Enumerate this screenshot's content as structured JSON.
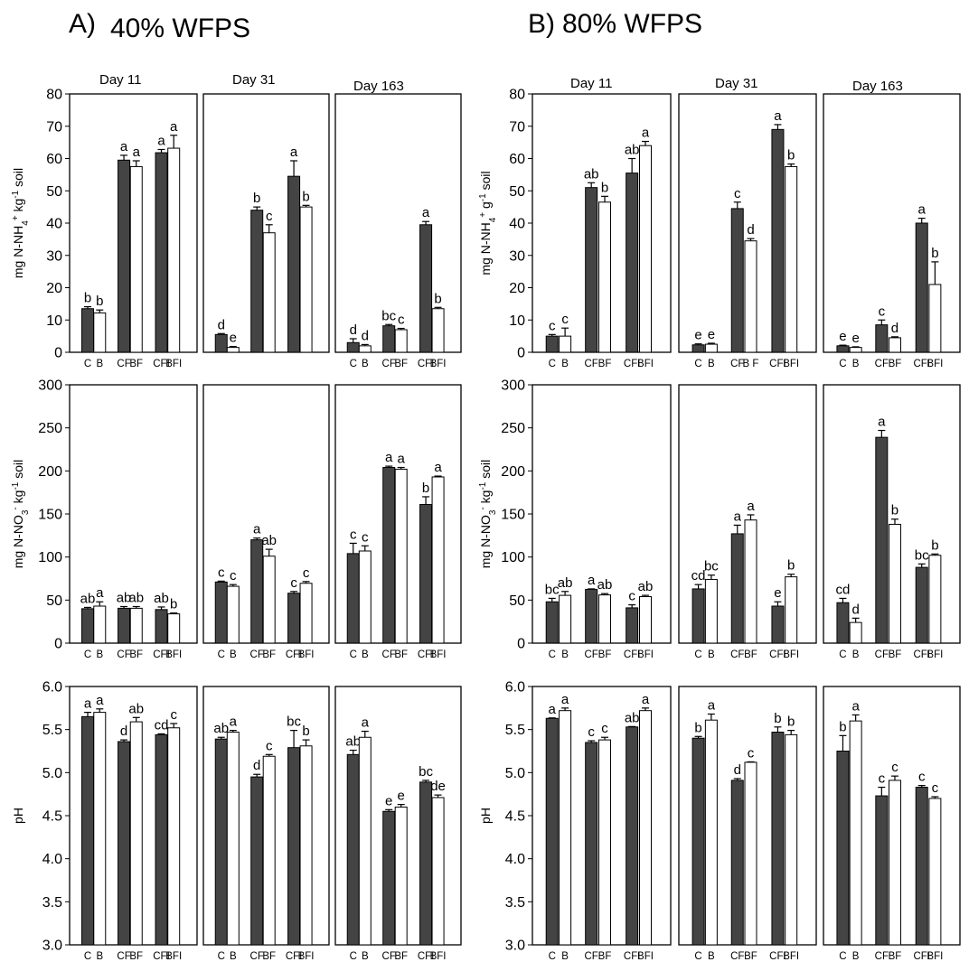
{
  "figure": {
    "panels": [
      {
        "letter": "A)",
        "title": "40% WFPS"
      },
      {
        "letter": "B)",
        "title": "80% WFPS"
      }
    ],
    "days": [
      "Day  11",
      "Day 31",
      "Day 163"
    ],
    "rows": [
      {
        "ylabel_parts": [
          [
            "mg N-NH",
            ""
          ],
          [
            "4",
            "sub"
          ],
          [
            "+",
            "sup"
          ],
          [
            " kg",
            ""
          ],
          [
            "-1",
            "sup"
          ],
          [
            " soil",
            ""
          ]
        ]
      },
      {
        "ylabel_parts": [
          [
            "mg N-NO",
            ""
          ],
          [
            "3",
            "sub"
          ],
          [
            "-",
            "sup"
          ],
          [
            " kg",
            ""
          ],
          [
            "-1",
            "sup"
          ],
          [
            " soil",
            ""
          ]
        ]
      },
      {
        "ylabel_parts": [
          [
            "pH",
            ""
          ]
        ]
      }
    ],
    "ylabel_nh4_B_parts": [
      [
        "mg N-NH",
        ""
      ],
      [
        "4",
        "sub"
      ],
      [
        "+",
        "sup"
      ],
      [
        " g",
        ""
      ],
      [
        "-1",
        "sup"
      ],
      [
        " soil",
        ""
      ]
    ],
    "colors": {
      "dark_bar": "#444444",
      "light_bar": "#ffffff",
      "frame": "#000000"
    }
  },
  "chart_data": [
    {
      "type": "bar",
      "panel": "A) 40% WFPS",
      "variable": "NH4",
      "day": "Day  11",
      "ylim": [
        0,
        80
      ],
      "yticks": [
        "0",
        "10",
        "20",
        "30",
        "40",
        "50",
        "60",
        "70",
        "80"
      ],
      "ylabel": "mg N-NH4+ kg-1 soil",
      "show_yaxis": true,
      "tick_labels": [
        "C",
        "B",
        "CF",
        "BF",
        "CFI",
        "BFI"
      ],
      "values": [
        13.5,
        12.2,
        59.5,
        57.5,
        61.8,
        63.2
      ],
      "errors": [
        0.6,
        0.9,
        1.5,
        1.8,
        1.0,
        4.0
      ],
      "letters": [
        "b",
        "b",
        "a",
        "a",
        "a",
        "a"
      ]
    },
    {
      "type": "bar",
      "panel": "A) 40% WFPS",
      "variable": "NH4",
      "day": "Day 31",
      "ylim": [
        0,
        80
      ],
      "show_yaxis": false,
      "tick_labels": [
        "",
        "",
        "",
        "",
        "",
        ""
      ],
      "values": [
        5.5,
        1.5,
        44.0,
        37.0,
        54.5,
        45.0
      ],
      "errors": [
        0.3,
        0.3,
        1.0,
        2.5,
        4.8,
        0.5
      ],
      "letters": [
        "d",
        "e",
        "b",
        "c",
        "a",
        "b"
      ]
    },
    {
      "type": "bar",
      "panel": "A) 40% WFPS",
      "variable": "NH4",
      "day": "Day 163",
      "ylim": [
        0,
        80
      ],
      "show_yaxis": false,
      "tick_labels": [
        "C",
        "B",
        "CF",
        "BF",
        "CFI",
        "BFI"
      ],
      "values": [
        3.0,
        2.0,
        8.2,
        7.0,
        39.5,
        13.5
      ],
      "errors": [
        1.2,
        0.4,
        0.4,
        0.4,
        1.0,
        0.4
      ],
      "letters": [
        "d",
        "d",
        "bc",
        "c",
        "a",
        "b"
      ]
    },
    {
      "type": "bar",
      "panel": "A) 40% WFPS",
      "variable": "NO3",
      "day": "Day  11",
      "ylim": [
        0,
        300
      ],
      "yticks": [
        "0",
        "50",
        "100",
        "150",
        "200",
        "250",
        "300"
      ],
      "ylabel": "mg N-NO3- kg-1 soil",
      "show_yaxis": true,
      "tick_labels": [
        "C",
        "B",
        "CF",
        "BF",
        "CFI",
        "BFI"
      ],
      "values": [
        40.0,
        43.0,
        40.5,
        40.5,
        39.0,
        34.0
      ],
      "errors": [
        1.5,
        5.0,
        2.0,
        2.0,
        3.0,
        1.0
      ],
      "letters": [
        "ab",
        "a",
        "ab",
        "ab",
        "ab",
        "b"
      ]
    },
    {
      "type": "bar",
      "panel": "A) 40% WFPS",
      "variable": "NO3",
      "day": "Day 31",
      "ylim": [
        0,
        300
      ],
      "show_yaxis": false,
      "tick_labels": [
        "C",
        "B",
        "CF",
        "BF",
        "CFI",
        "BFI"
      ],
      "values": [
        71.0,
        66.0,
        120.0,
        101.0,
        58.0,
        69.5
      ],
      "errors": [
        1.0,
        2.0,
        2.0,
        8.0,
        2.0,
        2.0
      ],
      "letters": [
        "c",
        "c",
        "a",
        "ab",
        "c",
        "c"
      ]
    },
    {
      "type": "bar",
      "panel": "A) 40% WFPS",
      "variable": "NO3",
      "day": "Day 163",
      "ylim": [
        0,
        300
      ],
      "show_yaxis": false,
      "tick_labels": [
        "C",
        "B",
        "CF",
        "BF",
        "CFI",
        "BFI"
      ],
      "values": [
        104.0,
        107.0,
        204.0,
        202.0,
        161.0,
        193.0
      ],
      "errors": [
        12.0,
        6.0,
        1.5,
        2.0,
        9.0,
        1.0
      ],
      "letters": [
        "c",
        "c",
        "a",
        "a",
        "b",
        "a"
      ]
    },
    {
      "type": "bar",
      "panel": "A) 40% WFPS",
      "variable": "pH",
      "day": "Day  11",
      "ylim": [
        3.0,
        6.0
      ],
      "yticks": [
        "3.0",
        "3.5",
        "4.0",
        "4.5",
        "5.0",
        "5.5",
        "6.0"
      ],
      "ylabel": "pH",
      "show_yaxis": true,
      "tick_labels": [
        "C",
        "B",
        "CF",
        "BF",
        "CFI",
        "BFI"
      ],
      "values": [
        5.65,
        5.7,
        5.36,
        5.59,
        5.44,
        5.52
      ],
      "errors": [
        0.05,
        0.04,
        0.02,
        0.05,
        0.01,
        0.05
      ],
      "letters": [
        "a",
        "a",
        "d",
        "ab",
        "cd",
        "c"
      ]
    },
    {
      "type": "bar",
      "panel": "A) 40% WFPS",
      "variable": "pH",
      "day": "Day 31",
      "ylim": [
        3.0,
        6.0
      ],
      "show_yaxis": false,
      "tick_labels": [
        "C",
        "B",
        "CF",
        "BF",
        "CFI",
        "BFI"
      ],
      "values": [
        5.39,
        5.47,
        4.95,
        5.19,
        5.29,
        5.31
      ],
      "errors": [
        0.02,
        0.02,
        0.03,
        0.02,
        0.2,
        0.07
      ],
      "letters": [
        "ab",
        "a",
        "d",
        "c",
        "bc",
        "b"
      ]
    },
    {
      "type": "bar",
      "panel": "A) 40% WFPS",
      "variable": "pH",
      "day": "Day 163",
      "ylim": [
        3.0,
        6.0
      ],
      "show_yaxis": false,
      "tick_labels": [
        "C",
        "B",
        "CF",
        "BF",
        "CFI",
        "BFI"
      ],
      "values": [
        5.21,
        5.41,
        4.55,
        4.6,
        4.89,
        4.71
      ],
      "errors": [
        0.05,
        0.07,
        0.02,
        0.03,
        0.02,
        0.03
      ],
      "letters": [
        "ab",
        "a",
        "e",
        "e",
        "bc",
        "de"
      ]
    },
    {
      "type": "bar",
      "panel": "B) 80% WFPS",
      "variable": "NH4",
      "day": "Day  11",
      "ylim": [
        0,
        80
      ],
      "yticks": [
        "0",
        "10",
        "20",
        "30",
        "40",
        "50",
        "60",
        "70",
        "80"
      ],
      "ylabel": "mg N-NH4+ g-1 soil",
      "show_yaxis": true,
      "tick_labels": [
        "C",
        "B",
        "CF",
        "BF",
        "CFI",
        "BFI"
      ],
      "values": [
        5.0,
        5.0,
        51.0,
        46.5,
        55.5,
        64.0
      ],
      "errors": [
        0.5,
        2.5,
        1.5,
        1.8,
        4.5,
        1.3
      ],
      "letters": [
        "c",
        "c",
        "ab",
        "b",
        "ab",
        "a"
      ]
    },
    {
      "type": "bar",
      "panel": "B) 80% WFPS",
      "variable": "NH4",
      "day": "Day 31",
      "ylim": [
        0,
        80
      ],
      "show_yaxis": false,
      "tick_labels": [
        "C",
        "B",
        "CF",
        "B F",
        "CFI",
        "BFI"
      ],
      "values": [
        2.3,
        2.5,
        44.5,
        34.5,
        69.0,
        57.5
      ],
      "errors": [
        0.3,
        0.3,
        2.0,
        0.7,
        1.5,
        0.8
      ],
      "letters": [
        "e",
        "e",
        "c",
        "d",
        "a",
        "b"
      ]
    },
    {
      "type": "bar",
      "panel": "B) 80% WFPS",
      "variable": "NH4",
      "day": "Day 163",
      "ylim": [
        0,
        80
      ],
      "show_yaxis": false,
      "tick_labels": [
        "C",
        "B",
        "CF",
        "BF",
        "CFI",
        "BFI"
      ],
      "values": [
        2.0,
        1.5,
        8.5,
        4.5,
        40.0,
        21.0
      ],
      "errors": [
        0.2,
        0.2,
        1.5,
        0.3,
        1.5,
        7.0
      ],
      "letters": [
        "e",
        "e",
        "c",
        "d",
        "a",
        "b"
      ]
    },
    {
      "type": "bar",
      "panel": "B) 80% WFPS",
      "variable": "NO3",
      "day": "Day  11",
      "ylim": [
        0,
        300
      ],
      "yticks": [
        "0",
        "50",
        "100",
        "150",
        "200",
        "250",
        "300"
      ],
      "ylabel": "mg N-NO3- kg-1 soil",
      "show_yaxis": true,
      "tick_labels": [
        "C",
        "B",
        "CF",
        "BF",
        "CFI",
        "BFI"
      ],
      "values": [
        48.0,
        55.5,
        62.5,
        56.0,
        41.0,
        54.0
      ],
      "errors": [
        4.0,
        4.5,
        0.5,
        1.5,
        3.5,
        1.5
      ],
      "letters": [
        "bc",
        "ab",
        "a",
        "ab",
        "c",
        "ab"
      ]
    },
    {
      "type": "bar",
      "panel": "B) 80% WFPS",
      "variable": "NO3",
      "day": "Day 31",
      "ylim": [
        0,
        300
      ],
      "show_yaxis": false,
      "tick_labels": [
        "C",
        "B",
        "CF",
        "BF",
        "CFI",
        "BFI"
      ],
      "values": [
        63.0,
        74.0,
        127.0,
        143.0,
        43.0,
        77.0
      ],
      "errors": [
        5.0,
        5.0,
        10.0,
        6.0,
        5.0,
        3.0
      ],
      "letters": [
        "cd",
        "bc",
        "a",
        "a",
        "e",
        "b"
      ]
    },
    {
      "type": "bar",
      "panel": "B) 80% WFPS",
      "variable": "NO3",
      "day": "Day 163",
      "ylim": [
        0,
        300
      ],
      "show_yaxis": false,
      "tick_labels": [
        "C",
        "B",
        "CF",
        "BF",
        "CFI",
        "BFI"
      ],
      "values": [
        47.0,
        24.0,
        239.0,
        138.0,
        88.0,
        102.0
      ],
      "errors": [
        5.0,
        5.0,
        8.0,
        6.0,
        4.0,
        1.5
      ],
      "letters": [
        "cd",
        "d",
        "a",
        "b",
        "bc",
        "b"
      ]
    },
    {
      "type": "bar",
      "panel": "B) 80% WFPS",
      "variable": "pH",
      "day": "Day  11",
      "ylim": [
        3.0,
        6.0
      ],
      "yticks": [
        "3.0",
        "3.5",
        "4.0",
        "4.5",
        "5.0",
        "5.5",
        "6.0"
      ],
      "ylabel": "pH",
      "show_yaxis": true,
      "tick_labels": [
        "C",
        "B",
        "CF",
        "BF",
        "CFI",
        "BFI"
      ],
      "values": [
        5.63,
        5.72,
        5.35,
        5.38,
        5.53,
        5.72
      ],
      "errors": [
        0.005,
        0.03,
        0.02,
        0.03,
        0.005,
        0.03
      ],
      "letters": [
        "a",
        "a",
        "c",
        "c",
        "ab",
        "a"
      ]
    },
    {
      "type": "bar",
      "panel": "B) 80% WFPS",
      "variable": "pH",
      "day": "Day 31",
      "ylim": [
        3.0,
        6.0
      ],
      "show_yaxis": false,
      "tick_labels": [
        "C",
        "B",
        "CF",
        "BF",
        "CFI",
        "BFI"
      ],
      "values": [
        5.4,
        5.61,
        4.91,
        5.12,
        5.47,
        5.44
      ],
      "errors": [
        0.02,
        0.07,
        0.02,
        0.005,
        0.06,
        0.05
      ],
      "letters": [
        "b",
        "a",
        "d",
        "c",
        "b",
        "b"
      ]
    },
    {
      "type": "bar",
      "panel": "B) 80% WFPS",
      "variable": "pH",
      "day": "Day 163",
      "ylim": [
        3.0,
        6.0
      ],
      "show_yaxis": false,
      "tick_labels": [
        "C",
        "B",
        "CF",
        "BF",
        "CFI",
        "BFI"
      ],
      "values": [
        5.25,
        5.6,
        4.73,
        4.91,
        4.83,
        4.7
      ],
      "errors": [
        0.18,
        0.07,
        0.1,
        0.05,
        0.02,
        0.02
      ],
      "letters": [
        "b",
        "a",
        "c",
        "c",
        "c",
        "c"
      ]
    }
  ]
}
